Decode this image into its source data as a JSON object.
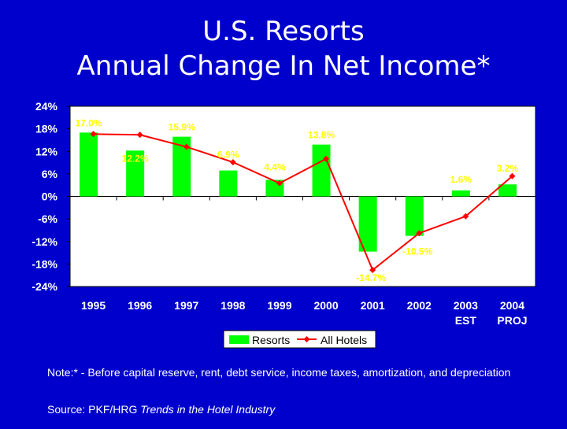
{
  "title_line1": "U.S. Resorts",
  "title_line2": "Annual Change In Net Income*",
  "note": "Note:* - Before capital reserve, rent, debt service, income taxes, amortization, and depreciation",
  "source_prefix": "Source: PKF/HRG ",
  "source_italic": "Trends in the Hotel Industry",
  "colors": {
    "background": "#0000cc",
    "bars": "#00ff00",
    "line": "#ff0000",
    "text": "#ffffff",
    "label": "#ffff00",
    "plot_bg": "#ffffff"
  },
  "chart_data": {
    "type": "bar",
    "categories": [
      [
        "1995"
      ],
      [
        "1996"
      ],
      [
        "1997"
      ],
      [
        "1998"
      ],
      [
        "1999"
      ],
      [
        "2000"
      ],
      [
        "2001"
      ],
      [
        "2002"
      ],
      [
        "2003",
        "EST"
      ],
      [
        "2004",
        "PROJ"
      ]
    ],
    "series": [
      {
        "name": "Resorts",
        "type": "bar",
        "values": [
          17.0,
          12.2,
          15.9,
          6.9,
          4.4,
          13.8,
          -14.7,
          -10.5,
          1.6,
          3.2
        ],
        "labels": [
          "17.0%",
          "12.2%",
          "15.9%",
          "6.9%",
          "4.4%",
          "13.8%",
          "-14.7%",
          "-10.5%",
          "1.6%",
          "3.2%"
        ]
      },
      {
        "name": "All Hotels",
        "type": "line",
        "values": [
          16.6,
          16.4,
          13.2,
          9.1,
          3.5,
          10.0,
          -19.6,
          -9.8,
          -5.3,
          5.4
        ]
      }
    ],
    "ylim": [
      -24,
      24
    ],
    "yticks": [
      24,
      18,
      12,
      6,
      0,
      -6,
      -12,
      -18,
      -24
    ],
    "ytick_labels": [
      "24%",
      "18%",
      "12%",
      "6%",
      "0%",
      "-6%",
      "-12%",
      "-18%",
      "-24%"
    ],
    "legend_position": "bottom",
    "grid": false
  }
}
